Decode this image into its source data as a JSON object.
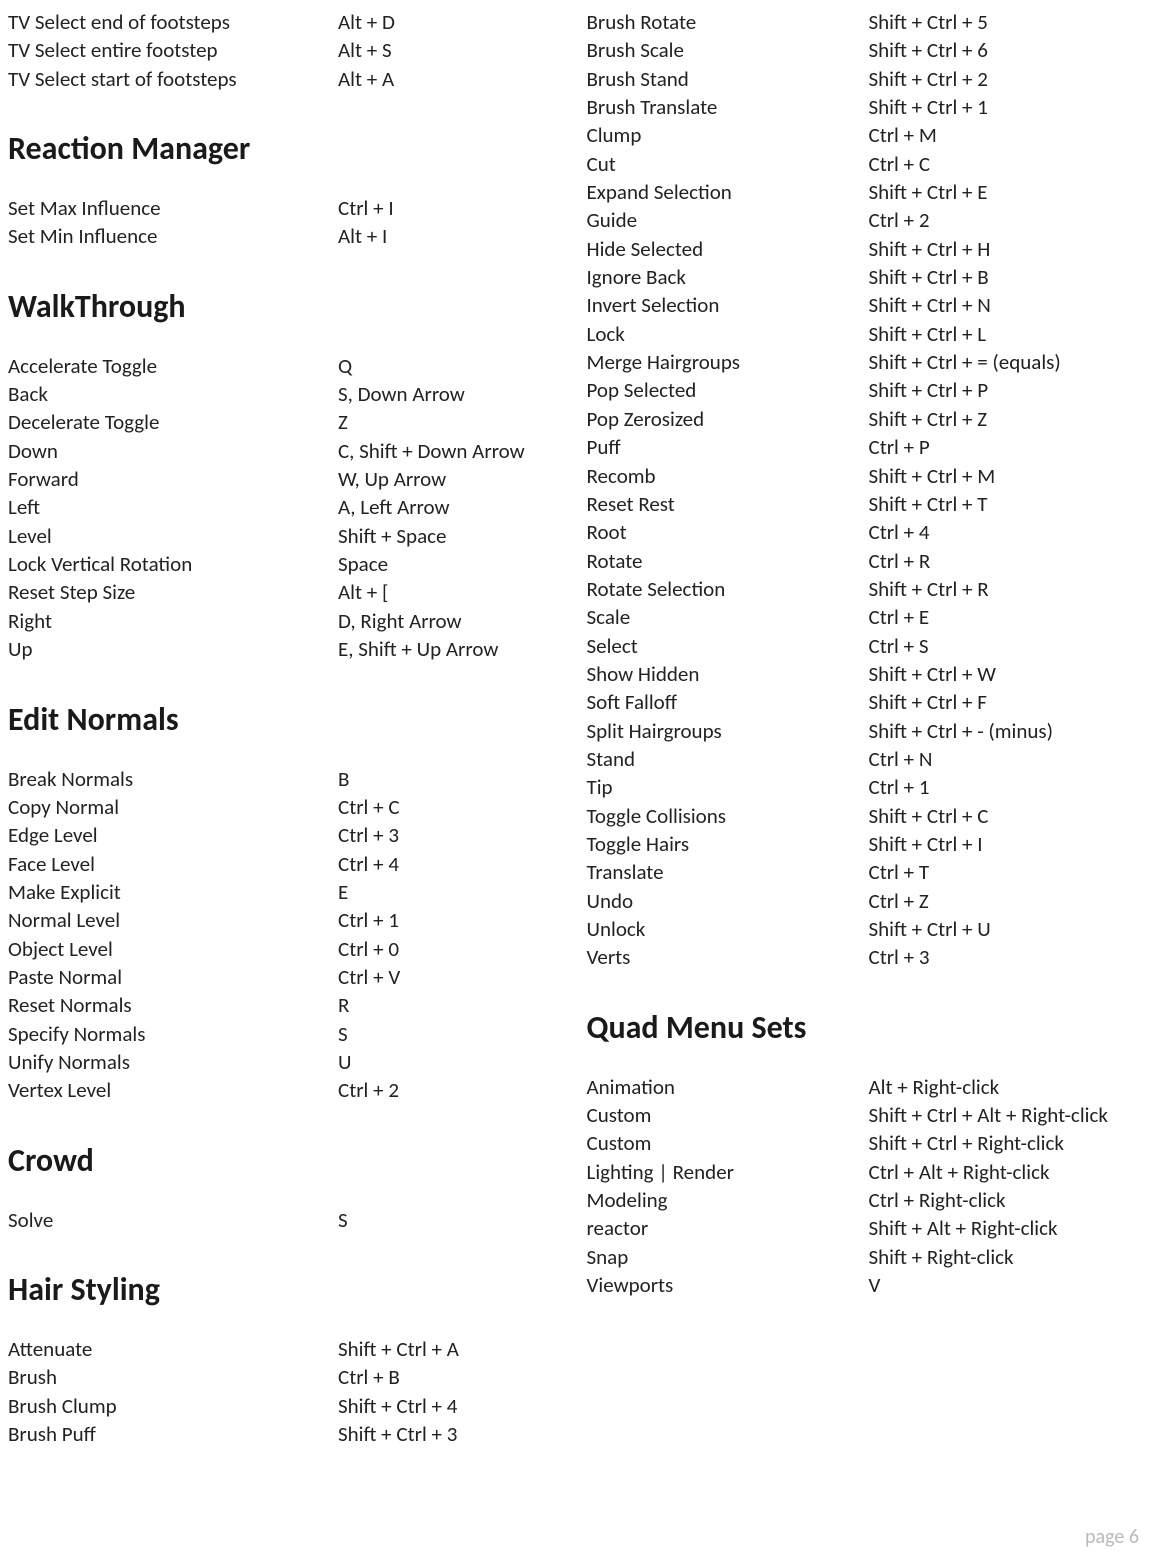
{
  "page_number": "page 6",
  "left_column": [
    {
      "title": null,
      "rows": [
        {
          "action": "TV Select end of footsteps",
          "key": "Alt + D"
        },
        {
          "action": "TV Select entire footstep",
          "key": "Alt + S"
        },
        {
          "action": "TV Select start of footsteps",
          "key": "Alt + A"
        }
      ]
    },
    {
      "title": "Reaction Manager",
      "rows": [
        {
          "action": "Set Max Influence",
          "key": "Ctrl + I"
        },
        {
          "action": "Set Min Influence",
          "key": "Alt + I"
        }
      ]
    },
    {
      "title": "WalkThrough",
      "rows": [
        {
          "action": "Accelerate Toggle",
          "key": "Q"
        },
        {
          "action": "Back",
          "key": "S, Down Arrow"
        },
        {
          "action": "Decelerate Toggle",
          "key": "Z"
        },
        {
          "action": "Down",
          "key": "C, Shift + Down Arrow"
        },
        {
          "action": "Forward",
          "key": "W, Up Arrow"
        },
        {
          "action": "Left",
          "key": "A, Left Arrow"
        },
        {
          "action": "Level",
          "key": "Shift + Space"
        },
        {
          "action": "Lock Vertical Rotation",
          "key": "Space"
        },
        {
          "action": "Reset Step Size",
          "key": "Alt + ["
        },
        {
          "action": "Right",
          "key": "D, Right Arrow"
        },
        {
          "action": "Up",
          "key": "E, Shift + Up Arrow"
        }
      ]
    },
    {
      "title": "Edit Normals",
      "rows": [
        {
          "action": "Break Normals",
          "key": "B"
        },
        {
          "action": "Copy Normal",
          "key": "Ctrl  + C"
        },
        {
          "action": "Edge Level",
          "key": "Ctrl  + 3"
        },
        {
          "action": "Face Level",
          "key": "Ctrl  +  4"
        },
        {
          "action": "Make Explicit",
          "key": "E"
        },
        {
          "action": "Normal Level",
          "key": "Ctrl  + 1"
        },
        {
          "action": "Object Level",
          "key": "Ctrl  +  0"
        },
        {
          "action": "Paste Normal",
          "key": "Ctrl  +  V"
        },
        {
          "action": "Reset Normals",
          "key": "R"
        },
        {
          "action": "Specify Normals",
          "key": "S"
        },
        {
          "action": "Unify Normals",
          "key": "U"
        },
        {
          "action": "Vertex Level",
          "key": "Ctrl  +  2"
        }
      ]
    },
    {
      "title": "Crowd",
      "rows": [
        {
          "action": "Solve",
          "key": "S"
        }
      ]
    },
    {
      "title": "Hair Styling",
      "rows": [
        {
          "action": "Attenuate",
          "key": "Shift + Ctrl + A"
        },
        {
          "action": "Brush",
          "key": "Ctrl + B"
        },
        {
          "action": "Brush Clump",
          "key": "Shift + Ctrl + 4"
        },
        {
          "action": "Brush Puff",
          "key": "Shift + Ctrl + 3"
        }
      ]
    }
  ],
  "right_column": [
    {
      "title": null,
      "rows": [
        {
          "action": "Brush Rotate",
          "key": "Shift + Ctrl + 5"
        },
        {
          "action": "Brush Scale",
          "key": "Shift + Ctrl + 6"
        },
        {
          "action": "Brush Stand",
          "key": "Shift + Ctrl + 2"
        },
        {
          "action": "Brush Translate",
          "key": "Shift + Ctrl + 1"
        },
        {
          "action": "Clump",
          "key": "Ctrl + M"
        },
        {
          "action": "Cut",
          "key": "Ctrl + C"
        },
        {
          "action": "Expand Selection",
          "key": "Shift + Ctrl + E"
        },
        {
          "action": "Guide",
          "key": "Ctrl + 2"
        },
        {
          "action": "Hide Selected",
          "key": "Shift + Ctrl + H"
        },
        {
          "action": "Ignore Back",
          "key": "Shift + Ctrl + B"
        },
        {
          "action": "Invert Selection",
          "key": "Shift + Ctrl + N"
        },
        {
          "action": "Lock",
          "key": "Shift + Ctrl + L"
        },
        {
          "action": "Merge Hairgroups",
          "key": "Shift + Ctrl + = (equals)"
        },
        {
          "action": "Pop Selected",
          "key": "Shift + Ctrl + P"
        },
        {
          "action": "Pop Zerosized",
          "key": "Shift + Ctrl + Z"
        },
        {
          "action": "Puff",
          "key": "Ctrl + P"
        },
        {
          "action": "Recomb",
          "key": "Shift + Ctrl + M"
        },
        {
          "action": "Reset Rest",
          "key": "Shift + Ctrl + T"
        },
        {
          "action": "Root",
          "key": "Ctrl + 4"
        },
        {
          "action": "Rotate",
          "key": "Ctrl + R"
        },
        {
          "action": "Rotate Selection",
          "key": "Shift + Ctrl + R"
        },
        {
          "action": "Scale",
          "key": "Ctrl + E"
        },
        {
          "action": "Select",
          "key": "Ctrl + S"
        },
        {
          "action": "Show Hidden",
          "key": "Shift + Ctrl + W"
        },
        {
          "action": "Soft Falloff",
          "key": "Shift + Ctrl + F"
        },
        {
          "action": "Split Hairgroups",
          "key": "Shift + Ctrl + - (minus)"
        },
        {
          "action": "Stand",
          "key": "Ctrl + N"
        },
        {
          "action": "Tip",
          "key": "Ctrl + 1"
        },
        {
          "action": "Toggle Collisions",
          "key": "Shift + Ctrl + C"
        },
        {
          "action": "Toggle Hairs",
          "key": "Shift + Ctrl + I"
        },
        {
          "action": "Translate",
          "key": "Ctrl + T"
        },
        {
          "action": "Undo",
          "key": "Ctrl + Z"
        },
        {
          "action": "Unlock",
          "key": "Shift + Ctrl + U"
        },
        {
          "action": "Verts",
          "key": "Ctrl + 3"
        }
      ]
    },
    {
      "title": "Quad Menu Sets",
      "rows": [
        {
          "action": "Animation",
          "key": "Alt + Right-click"
        },
        {
          "action": "Custom",
          "key": "Shift + Ctrl + Alt + Right-click"
        },
        {
          "action": "Custom",
          "key": "Shift + Ctrl + Right-click"
        },
        {
          "action": "Lighting | Render",
          "key": "Ctrl + Alt + Right-click"
        },
        {
          "action": "Modeling",
          "key": "Ctrl + Right-click"
        },
        {
          "action": "reactor",
          "key": "Shift + Alt + Right-click"
        },
        {
          "action": "Snap",
          "key": "Shift + Right-click"
        },
        {
          "action": "Viewports",
          "key": "V"
        }
      ]
    }
  ]
}
